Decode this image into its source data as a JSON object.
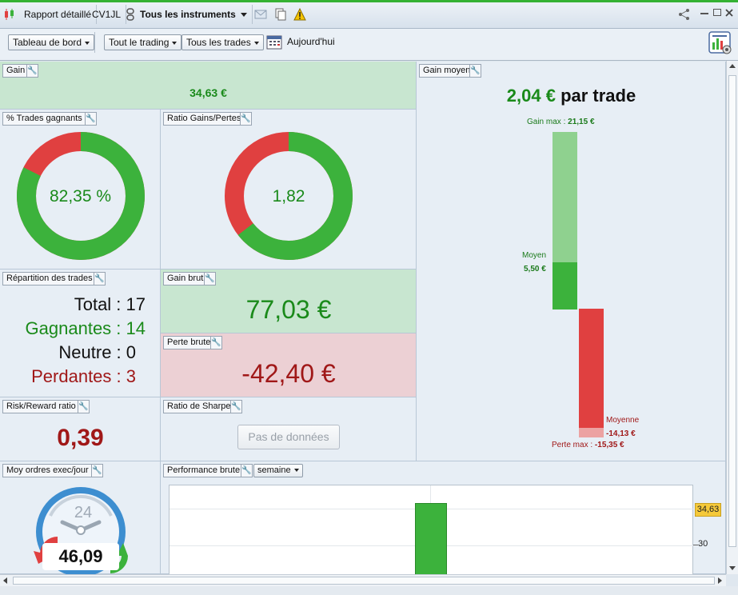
{
  "titlebar": {
    "tabs": [
      "Rapport détaillé",
      "CV1JL",
      "Tous les instruments"
    ]
  },
  "toolbar": {
    "dashboard": "Tableau de bord",
    "trading": "Tout le trading",
    "trades": "Tous les trades",
    "date": "Aujourd'hui"
  },
  "gain": {
    "title": "Gain",
    "value": "34,63 €"
  },
  "gain_moyen": {
    "title": "Gain moyen",
    "headline_value": "2,04 €",
    "headline_suffix": "par trade",
    "gain_max_label": "Gain max :",
    "gain_max_value": "21,15 €",
    "moyen_label": "Moyen",
    "moyen_value": "5,50 €",
    "moyenne_label": "Moyenne",
    "moyenne_value": "-14,13 €",
    "perte_max_label": "Perte max :",
    "perte_max_value": "-15,35 €",
    "gain_max_num": 21.15,
    "gain_moyen_num": 5.5,
    "perte_moyenne_num": -14.13,
    "perte_max_num": -15.35
  },
  "trades_gagnants": {
    "title": "% Trades gagnants",
    "value": "82,35 %",
    "fraction": 0.8235
  },
  "ratio_gains": {
    "title": "Ratio Gains/Pertes",
    "value": "1,82",
    "gain_fraction": 0.645
  },
  "repartition": {
    "title": "Répartition des trades",
    "total": "Total : 17",
    "gagnantes": "Gagnantes : 14",
    "neutre": "Neutre : 0",
    "perdantes": "Perdantes : 3"
  },
  "gain_brut": {
    "title": "Gain brut",
    "value": "77,03 €"
  },
  "perte_brute": {
    "title": "Perte brute",
    "value": "-42,40 €"
  },
  "risk_reward": {
    "title": "Risk/Reward ratio",
    "value": "0,39"
  },
  "sharpe": {
    "title": "Ratio de Sharpe",
    "button": "Pas de données"
  },
  "ordres": {
    "title": "Moy ordres exec/jour",
    "clock_label": "24",
    "value": "46,09"
  },
  "performance": {
    "title": "Performance brute",
    "period": "semaine",
    "tag_value": "34,63",
    "tick_30": "30"
  },
  "chart_data": {
    "type": "bar",
    "title": "Performance brute",
    "values": [
      34.63
    ],
    "ylim_visible": [
      22,
      38
    ]
  },
  "colors": {
    "green": "#3cb23c",
    "red": "#e04040",
    "dark_green": "#1a8a1a",
    "dark_red": "#a01818"
  }
}
